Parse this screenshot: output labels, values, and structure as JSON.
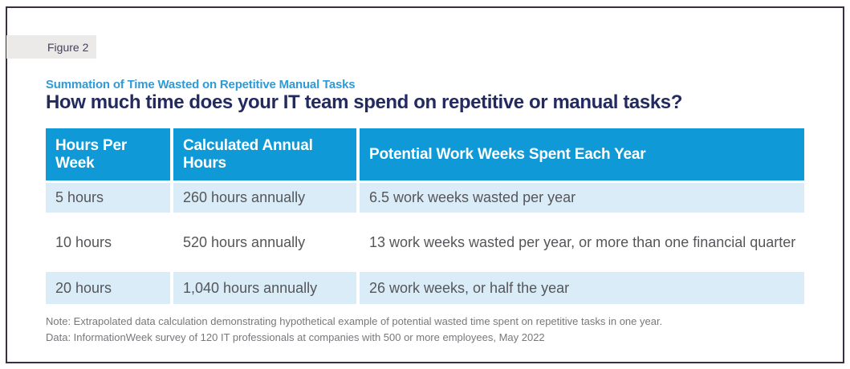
{
  "figure_label": "Figure 2",
  "chart_data": {
    "type": "table",
    "subtitle": "Summation of Time Wasted on Repetitive Manual Tasks",
    "title": "How much time does your IT team spend on repetitive or manual tasks?",
    "columns": [
      "Hours Per Week",
      "Calculated Annual Hours",
      "Potential Work Weeks Spent Each Year"
    ],
    "rows": [
      [
        "5 hours",
        "260 hours annually",
        "6.5 work weeks wasted per year"
      ],
      [
        "10 hours",
        "520 hours annually",
        "13 work weeks wasted per year, or more than one financial quarter"
      ],
      [
        "20 hours",
        "1,040 hours annually",
        "26 work weeks, or half the year"
      ]
    ],
    "notes": [
      "Note: Extrapolated data calculation demonstrating hypothetical example of potential wasted time spent on repetitive tasks in one year.",
      "Data: InformationWeek survey of 120 IT professionals at companies with 500 or more employees, May 2022"
    ],
    "layout": {
      "header_row": true,
      "alternating_row_shading": true,
      "grid": "off"
    }
  },
  "colors": {
    "header_bg": "#0f9ad7",
    "row_alt_bg": "#d9ecf7",
    "title_text": "#222a60",
    "subtitle_text": "#2e9ad6",
    "body_text": "#55565a",
    "note_text": "#77787b",
    "frame_border": "#3a2e45",
    "figure_label_bg": "#eceae8",
    "figure_label_text": "#45415c"
  }
}
